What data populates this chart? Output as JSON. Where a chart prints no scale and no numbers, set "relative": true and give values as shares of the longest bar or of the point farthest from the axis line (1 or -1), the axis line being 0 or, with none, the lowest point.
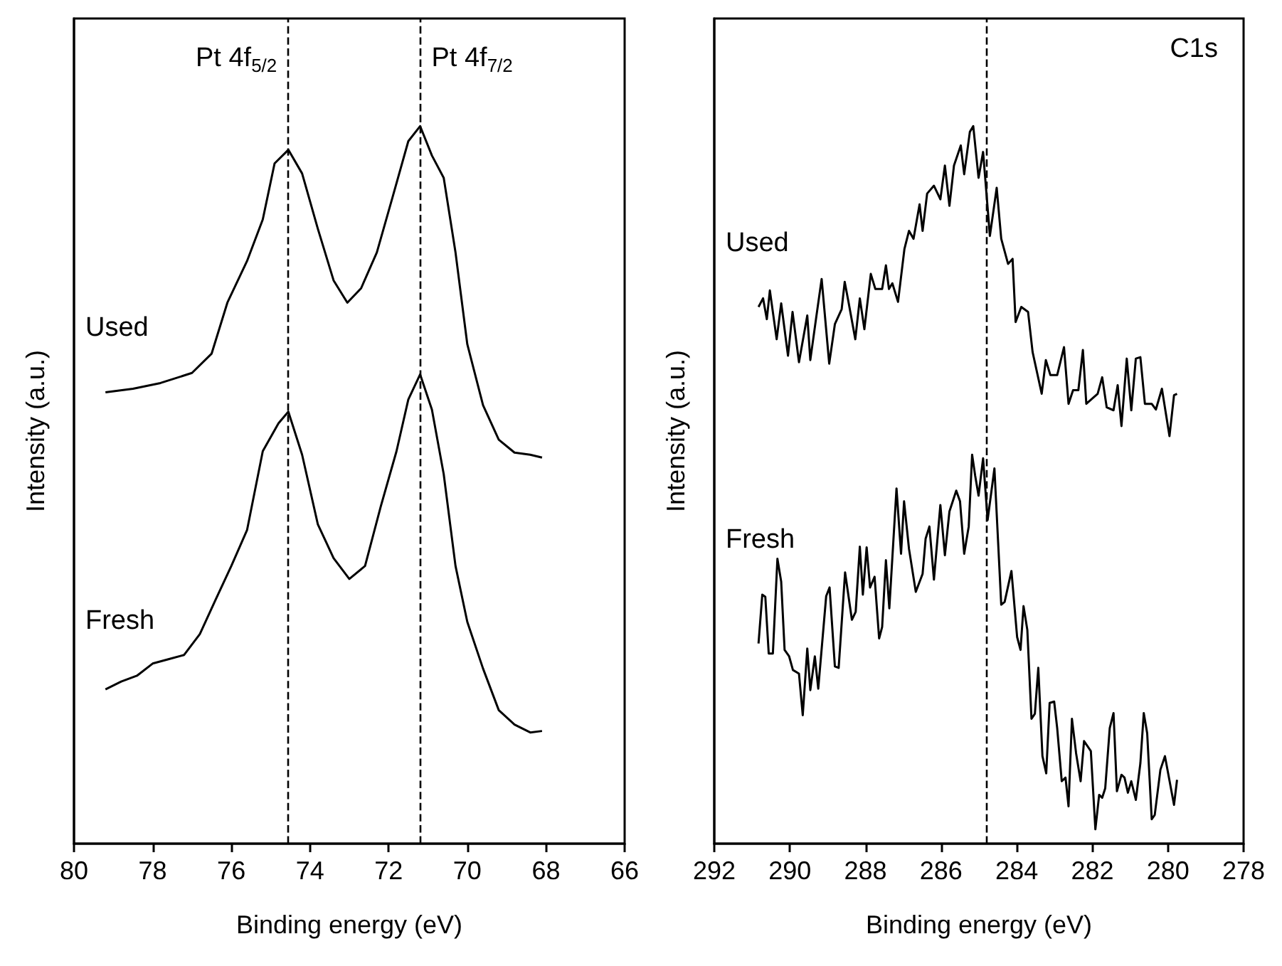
{
  "chart_data": [
    {
      "type": "line",
      "relative": true,
      "xlabel": "Binding energy (eV)",
      "ylabel": "Intensity (a.u.)",
      "xlim": [
        80,
        66
      ],
      "xticks": [
        80,
        78,
        76,
        74,
        72,
        70,
        68,
        66
      ],
      "grid": false,
      "marker": "none",
      "line_style": "solid",
      "annotations": [
        "Pt 4f$_{5/2}$",
        "Pt 4f$_{7/2}$"
      ],
      "ref_lines": [
        {
          "axis": "x",
          "value": 74.55,
          "line_style": "dashed",
          "color": "#000000"
        },
        {
          "axis": "x",
          "value": 71.2,
          "line_style": "dashed",
          "color": "#000000"
        }
      ],
      "series": [
        {
          "name": "Used",
          "color": "#000000",
          "x": [
            79.2,
            78.5,
            77.8,
            77.0,
            76.5,
            76.1,
            75.6,
            75.2,
            74.9,
            74.55,
            74.2,
            73.8,
            73.4,
            73.05,
            72.7,
            72.3,
            71.9,
            71.5,
            71.2,
            70.9,
            70.6,
            70.3,
            70.0,
            69.6,
            69.2,
            68.8,
            68.4,
            68.1
          ],
          "values": [
            0.629,
            0.634,
            0.642,
            0.656,
            0.683,
            0.754,
            0.812,
            0.87,
            0.948,
            0.967,
            0.934,
            0.857,
            0.785,
            0.754,
            0.774,
            0.824,
            0.901,
            0.979,
            1.0,
            0.959,
            0.928,
            0.824,
            0.696,
            0.611,
            0.563,
            0.545,
            0.542,
            0.538
          ]
        },
        {
          "name": "Fresh",
          "color": "#000000",
          "x": [
            79.2,
            78.8,
            78.4,
            78.0,
            77.6,
            77.2,
            76.8,
            76.4,
            76.0,
            75.6,
            75.2,
            74.8,
            74.55,
            74.2,
            73.8,
            73.4,
            73.0,
            72.6,
            72.2,
            71.8,
            71.5,
            71.2,
            70.9,
            70.6,
            70.3,
            70.0,
            69.6,
            69.2,
            68.8,
            68.4,
            68.1
          ],
          "values": [
            0.215,
            0.226,
            0.234,
            0.251,
            0.257,
            0.263,
            0.292,
            0.34,
            0.387,
            0.437,
            0.547,
            0.586,
            0.602,
            0.542,
            0.445,
            0.398,
            0.369,
            0.387,
            0.47,
            0.547,
            0.619,
            0.654,
            0.605,
            0.515,
            0.387,
            0.309,
            0.244,
            0.186,
            0.166,
            0.155,
            0.157
          ]
        }
      ]
    },
    {
      "type": "line",
      "relative": true,
      "xlabel": "Binding energy (eV)",
      "ylabel": "Intensity (a.u.)",
      "xlim": [
        292,
        278
      ],
      "xticks": [
        292,
        290,
        288,
        286,
        284,
        282,
        280,
        278
      ],
      "grid": false,
      "marker": "none",
      "line_style": "solid",
      "annotations": [
        "C1s"
      ],
      "ref_lines": [
        {
          "axis": "x",
          "value": 284.8,
          "line_style": "dashed",
          "color": "#000000"
        }
      ],
      "series": [
        {
          "name": "Used",
          "color": "#000000",
          "x": [
            290.83,
            290.71,
            290.61,
            290.53,
            290.35,
            290.23,
            290.05,
            289.93,
            289.76,
            289.54,
            289.46,
            289.31,
            289.16,
            288.96,
            288.81,
            288.63,
            288.55,
            288.45,
            288.27,
            288.15,
            288.03,
            287.86,
            287.74,
            287.56,
            287.46,
            287.38,
            287.29,
            287.14,
            286.97,
            286.85,
            286.73,
            286.57,
            286.49,
            286.37,
            286.19,
            286.02,
            285.9,
            285.78,
            285.66,
            285.48,
            285.39,
            285.24,
            285.15,
            285.01,
            284.89,
            284.71,
            284.53,
            284.41,
            284.23,
            284.11,
            284.03,
            283.88,
            283.7,
            283.58,
            283.34,
            283.23,
            283.11,
            282.93,
            282.75,
            282.63,
            282.51,
            282.37,
            282.25,
            282.16,
            281.86,
            281.74,
            281.62,
            281.44,
            281.33,
            281.23,
            281.09,
            280.97,
            280.85,
            280.73,
            280.61,
            280.43,
            280.32,
            280.16,
            279.96,
            279.84,
            279.76
          ],
          "values": [
            0.748,
            0.76,
            0.731,
            0.771,
            0.703,
            0.753,
            0.68,
            0.741,
            0.671,
            0.736,
            0.674,
            0.731,
            0.787,
            0.669,
            0.724,
            0.745,
            0.783,
            0.755,
            0.703,
            0.76,
            0.717,
            0.794,
            0.773,
            0.773,
            0.806,
            0.773,
            0.781,
            0.755,
            0.829,
            0.854,
            0.843,
            0.891,
            0.854,
            0.906,
            0.917,
            0.898,
            0.945,
            0.889,
            0.945,
            0.973,
            0.933,
            0.992,
            1.0,
            0.928,
            0.964,
            0.847,
            0.914,
            0.843,
            0.808,
            0.815,
            0.727,
            0.748,
            0.741,
            0.685,
            0.627,
            0.674,
            0.653,
            0.653,
            0.692,
            0.613,
            0.632,
            0.632,
            0.688,
            0.613,
            0.627,
            0.65,
            0.608,
            0.604,
            0.639,
            0.582,
            0.676,
            0.604,
            0.676,
            0.678,
            0.613,
            0.613,
            0.605,
            0.634,
            0.568,
            0.625,
            0.627
          ]
        },
        {
          "name": "Fresh",
          "color": "#000000",
          "x": [
            290.83,
            290.73,
            290.65,
            290.56,
            290.45,
            290.33,
            290.23,
            290.14,
            290.02,
            289.92,
            289.76,
            289.66,
            289.54,
            289.46,
            289.34,
            289.25,
            289.04,
            288.95,
            288.81,
            288.71,
            288.54,
            288.36,
            288.26,
            288.15,
            288.07,
            287.97,
            287.88,
            287.76,
            287.64,
            287.56,
            287.46,
            287.37,
            287.18,
            287.06,
            286.98,
            286.85,
            286.67,
            286.49,
            286.41,
            286.31,
            286.19,
            286.02,
            285.9,
            285.78,
            285.6,
            285.5,
            285.39,
            285.27,
            285.18,
            285.1,
            285.01,
            284.89,
            284.77,
            284.59,
            284.41,
            284.32,
            284.14,
            283.99,
            283.9,
            283.82,
            283.72,
            283.61,
            283.52,
            283.43,
            283.32,
            283.22,
            283.13,
            283.01,
            282.93,
            282.81,
            282.71,
            282.63,
            282.54,
            282.43,
            282.31,
            282.22,
            282.04,
            281.92,
            281.82,
            281.74,
            281.66,
            281.54,
            281.44,
            281.35,
            281.23,
            281.15,
            281.06,
            280.97,
            280.85,
            280.73,
            280.64,
            280.55,
            280.43,
            280.35,
            280.2,
            280.08,
            279.84,
            279.76
          ],
          "values": [
            0.279,
            0.347,
            0.344,
            0.265,
            0.265,
            0.397,
            0.365,
            0.27,
            0.261,
            0.242,
            0.237,
            0.179,
            0.272,
            0.214,
            0.261,
            0.216,
            0.345,
            0.357,
            0.247,
            0.245,
            0.378,
            0.312,
            0.323,
            0.414,
            0.347,
            0.413,
            0.357,
            0.372,
            0.286,
            0.302,
            0.395,
            0.328,
            0.495,
            0.404,
            0.477,
            0.411,
            0.351,
            0.376,
            0.425,
            0.442,
            0.368,
            0.472,
            0.402,
            0.463,
            0.492,
            0.477,
            0.404,
            0.442,
            0.542,
            0.513,
            0.485,
            0.537,
            0.451,
            0.523,
            0.333,
            0.337,
            0.38,
            0.288,
            0.27,
            0.331,
            0.298,
            0.174,
            0.181,
            0.245,
            0.122,
            0.098,
            0.196,
            0.198,
            0.161,
            0.087,
            0.092,
            0.052,
            0.174,
            0.126,
            0.087,
            0.143,
            0.129,
            0.02,
            0.068,
            0.064,
            0.077,
            0.161,
            0.182,
            0.073,
            0.096,
            0.092,
            0.071,
            0.087,
            0.061,
            0.112,
            0.182,
            0.154,
            0.034,
            0.04,
            0.103,
            0.122,
            0.054,
            0.089
          ]
        }
      ]
    }
  ]
}
